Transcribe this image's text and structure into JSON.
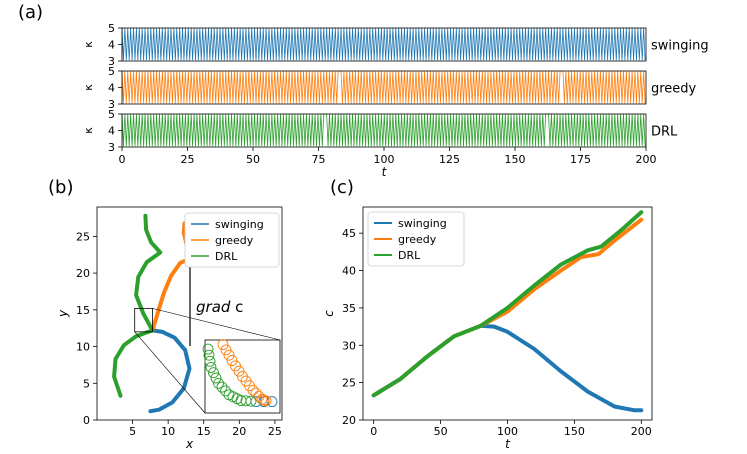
{
  "panel_labels": [
    "(a)",
    "(b)",
    "(c)"
  ],
  "colors": {
    "swinging": "#1f77b4",
    "greedy": "#ff7f0e",
    "DRL": "#2ca02c"
  },
  "chart_data": [
    {
      "panel": "(a)",
      "type": "line",
      "note": "three stacked strips; kappa oscillates rapidly between ~3 and 5 over t",
      "xlabel": "t",
      "ylabel": "κ",
      "xlim": [
        0,
        200
      ],
      "ylim": [
        3,
        5
      ],
      "xticks": [
        0,
        25,
        50,
        75,
        100,
        125,
        150,
        175,
        200
      ],
      "yticks": [
        3,
        4,
        5
      ],
      "series": [
        {
          "name": "swinging",
          "low": 3.05,
          "high": 5.0,
          "gaps": []
        },
        {
          "name": "greedy",
          "low": 3.05,
          "high": 5.0,
          "gaps": [
            83,
            168
          ]
        },
        {
          "name": "DRL",
          "low": 3.05,
          "high": 5.0,
          "gaps": [
            78,
            162
          ]
        }
      ]
    },
    {
      "panel": "(b)",
      "type": "line",
      "xlabel": "x",
      "ylabel": "y",
      "xlim": [
        0,
        26
      ],
      "ylim": [
        0,
        29
      ],
      "xticks": [
        5,
        10,
        15,
        20,
        25
      ],
      "yticks": [
        0,
        5,
        10,
        15,
        20,
        25
      ],
      "legend_position": "top-right",
      "annotation": "grad c",
      "series": [
        {
          "name": "swinging",
          "points": [
            [
              7.5,
              1.2
            ],
            [
              8.7,
              1.4
            ],
            [
              10.6,
              2.4
            ],
            [
              12.2,
              4.3
            ],
            [
              13.0,
              7.0
            ],
            [
              12.4,
              9.5
            ],
            [
              10.9,
              11.2
            ],
            [
              9.2,
              12.0
            ],
            [
              7.8,
              12.2
            ]
          ]
        },
        {
          "name": "greedy",
          "points": [
            [
              7.8,
              12.2
            ],
            [
              8.6,
              14.8
            ],
            [
              9.4,
              17.3
            ],
            [
              10.4,
              19.6
            ],
            [
              11.7,
              21.4
            ],
            [
              13.7,
              22.2
            ],
            [
              12.6,
              23.8
            ],
            [
              12.2,
              25.5
            ],
            [
              12.3,
              26.8
            ]
          ]
        },
        {
          "name": "DRL",
          "points": [
            [
              3.3,
              3.3
            ],
            [
              2.4,
              5.9
            ],
            [
              2.6,
              8.3
            ],
            [
              3.8,
              10.2
            ],
            [
              5.5,
              11.4
            ],
            [
              7.8,
              12.2
            ],
            [
              6.5,
              14.5
            ],
            [
              5.5,
              17.0
            ],
            [
              5.8,
              19.5
            ],
            [
              7.0,
              21.5
            ],
            [
              8.9,
              22.8
            ],
            [
              7.6,
              24.2
            ],
            [
              6.9,
              25.9
            ],
            [
              6.8,
              27.8
            ]
          ]
        }
      ],
      "inset": {
        "xlim": [
          5.3,
          7.8
        ],
        "ylim": [
          12.0,
          15.2
        ],
        "series": [
          {
            "name": "swinging",
            "points": [
              [
                7.0,
                12.5
              ],
              [
                7.8,
                12.5
              ]
            ]
          },
          {
            "name": "greedy",
            "points": [
              [
                5.9,
                15.0
              ],
              [
                6.2,
                14.3
              ],
              [
                6.55,
                13.6
              ],
              [
                6.9,
                13.0
              ],
              [
                7.2,
                12.6
              ],
              [
                7.4,
                12.5
              ]
            ]
          },
          {
            "name": "DRL",
            "points": [
              [
                5.4,
                14.8
              ],
              [
                5.5,
                14.0
              ],
              [
                5.75,
                13.3
              ],
              [
                6.1,
                12.8
              ],
              [
                6.5,
                12.55
              ],
              [
                7.0,
                12.5
              ]
            ]
          }
        ]
      }
    },
    {
      "panel": "(c)",
      "type": "line",
      "xlabel": "t",
      "ylabel": "c",
      "xlim": [
        -8,
        208
      ],
      "ylim": [
        20,
        48.5
      ],
      "xticks": [
        0,
        50,
        100,
        150,
        200
      ],
      "yticks": [
        20,
        25,
        30,
        35,
        40,
        45
      ],
      "legend_position": "top-left",
      "series": [
        {
          "name": "swinging",
          "x": [
            0,
            20,
            40,
            60,
            80,
            90,
            100,
            120,
            140,
            160,
            180,
            195,
            200
          ],
          "y": [
            23.3,
            25.5,
            28.5,
            31.2,
            32.6,
            32.5,
            31.8,
            29.5,
            26.5,
            23.8,
            21.8,
            21.3,
            21.3
          ]
        },
        {
          "name": "greedy",
          "x": [
            0,
            20,
            40,
            60,
            80,
            100,
            120,
            140,
            155,
            168,
            180,
            200
          ],
          "y": [
            23.3,
            25.5,
            28.5,
            31.2,
            32.6,
            34.5,
            37.5,
            40.0,
            41.8,
            42.2,
            44.0,
            46.8
          ]
        },
        {
          "name": "DRL",
          "x": [
            0,
            20,
            40,
            60,
            80,
            100,
            120,
            140,
            160,
            170,
            185,
            200
          ],
          "y": [
            23.3,
            25.5,
            28.5,
            31.2,
            32.6,
            35.0,
            38.0,
            40.8,
            42.7,
            43.2,
            45.4,
            47.8
          ]
        }
      ]
    }
  ]
}
